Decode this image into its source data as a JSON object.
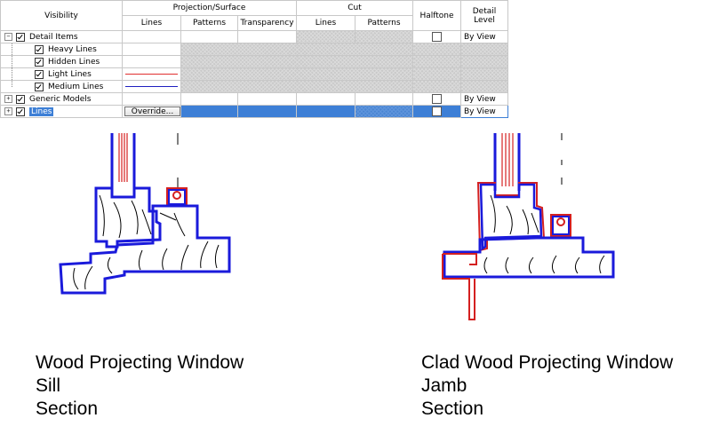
{
  "grid": {
    "headers": {
      "visibility": "Visibility",
      "projection_surface": "Projection/Surface",
      "cut": "Cut",
      "halftone": "Halftone",
      "detail_level_line1": "Detail",
      "detail_level_line2": "Level",
      "lines": "Lines",
      "patterns": "Patterns",
      "transparency": "Transparency",
      "cut_lines": "Lines",
      "cut_patterns": "Patterns"
    },
    "rows": [
      {
        "name": "Detail Items",
        "checked": true,
        "detail_level": "By View"
      },
      {
        "name": "Heavy Lines",
        "checked": true
      },
      {
        "name": "Hidden Lines",
        "checked": true
      },
      {
        "name": "Light Lines",
        "checked": true,
        "line_color": "#e03030"
      },
      {
        "name": "Medium Lines",
        "checked": true,
        "line_color": "#2020c0"
      },
      {
        "name": "Generic Models",
        "checked": true,
        "detail_level": "By View"
      },
      {
        "name": "Lines",
        "checked": true,
        "detail_level": "By View",
        "override_label": "Override..."
      }
    ],
    "expander_minus": "−",
    "expander_plus": "+"
  },
  "captions": {
    "left": {
      "line1": "Wood Projecting Window",
      "line2": "Sill",
      "line3": "Section"
    },
    "right": {
      "line1": "Clad Wood Projecting Window",
      "line2": "Jamb",
      "line3": "Section"
    }
  },
  "colors": {
    "profile_blue": "#1a1adb",
    "clad_red": "#d42020",
    "selection_blue": "#3d7fd6"
  }
}
